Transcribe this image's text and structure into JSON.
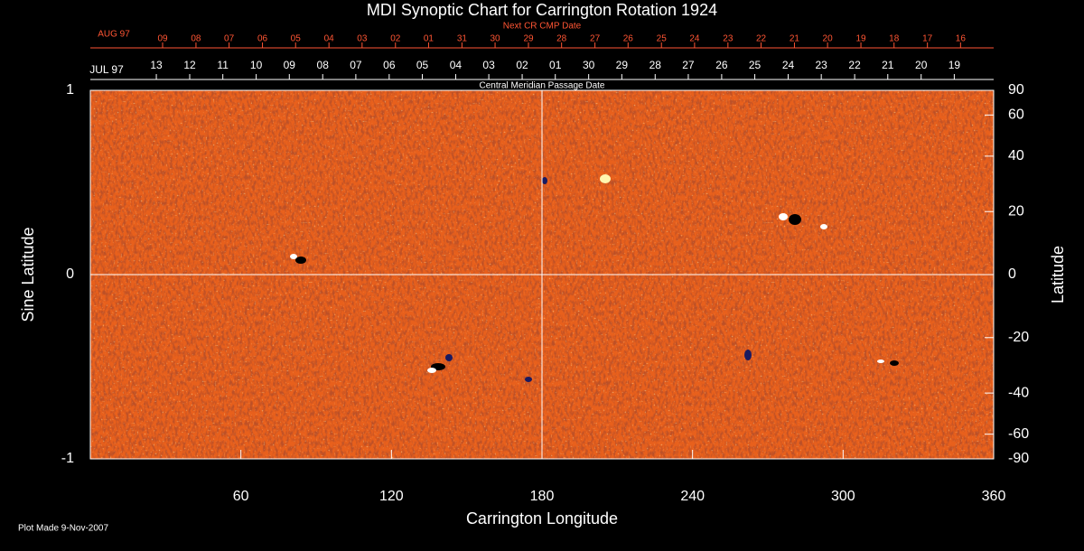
{
  "chart_data": {
    "type": "heatmap",
    "title": "MDI Synoptic Chart for Carrington Rotation 1924",
    "xlabel": "Carrington Longitude",
    "ylabel": "Sine Latitude",
    "y2label": "Latitude",
    "xlim": [
      0,
      360
    ],
    "xticks": [
      60,
      120,
      180,
      240,
      300,
      360
    ],
    "ylim": [
      -1,
      1
    ],
    "yticks": [
      -1,
      0,
      1
    ],
    "y2lim": [
      -90,
      90
    ],
    "y2scale": "sine",
    "y2ticks": [
      90,
      60,
      40,
      20,
      0,
      -20,
      -40,
      -60,
      -90
    ],
    "reference_lines": {
      "x": [
        180
      ],
      "y": [
        0
      ]
    },
    "top_axes": [
      {
        "title": "Next CR CMP Date",
        "month": "AUG 97",
        "color": "#ff5533",
        "ticks": [
          {
            "value": 28.8,
            "label": "09"
          },
          {
            "value": 42.1,
            "label": "08"
          },
          {
            "value": 55.3,
            "label": "07"
          },
          {
            "value": 68.6,
            "label": "06"
          },
          {
            "value": 81.8,
            "label": "05"
          },
          {
            "value": 95.1,
            "label": "04"
          },
          {
            "value": 108.3,
            "label": "03"
          },
          {
            "value": 121.6,
            "label": "02"
          },
          {
            "value": 134.8,
            "label": "01"
          },
          {
            "value": 148.1,
            "label": "31"
          },
          {
            "value": 161.3,
            "label": "30"
          },
          {
            "value": 174.6,
            "label": "29"
          },
          {
            "value": 187.8,
            "label": "28"
          },
          {
            "value": 201.1,
            "label": "27"
          },
          {
            "value": 214.3,
            "label": "26"
          },
          {
            "value": 227.6,
            "label": "25"
          },
          {
            "value": 240.8,
            "label": "24"
          },
          {
            "value": 254.1,
            "label": "23"
          },
          {
            "value": 267.3,
            "label": "22"
          },
          {
            "value": 280.6,
            "label": "21"
          },
          {
            "value": 293.8,
            "label": "20"
          },
          {
            "value": 307.1,
            "label": "19"
          },
          {
            "value": 320.3,
            "label": "18"
          },
          {
            "value": 333.6,
            "label": "17"
          },
          {
            "value": 346.8,
            "label": "16"
          }
        ]
      },
      {
        "title": "Central Meridian Passage Date",
        "month": "JUL 97",
        "color": "#ffffff",
        "ticks": [
          {
            "value": 26.3,
            "label": "13"
          },
          {
            "value": 39.6,
            "label": "12"
          },
          {
            "value": 52.8,
            "label": "11"
          },
          {
            "value": 66.1,
            "label": "10"
          },
          {
            "value": 79.3,
            "label": "09"
          },
          {
            "value": 92.6,
            "label": "08"
          },
          {
            "value": 105.8,
            "label": "07"
          },
          {
            "value": 119.1,
            "label": "06"
          },
          {
            "value": 132.3,
            "label": "05"
          },
          {
            "value": 145.6,
            "label": "04"
          },
          {
            "value": 158.8,
            "label": "03"
          },
          {
            "value": 172.1,
            "label": "02"
          },
          {
            "value": 185.3,
            "label": "01"
          },
          {
            "value": 198.6,
            "label": "30"
          },
          {
            "value": 211.8,
            "label": "29"
          },
          {
            "value": 225.1,
            "label": "28"
          },
          {
            "value": 238.3,
            "label": "27"
          },
          {
            "value": 251.6,
            "label": "26"
          },
          {
            "value": 264.8,
            "label": "25"
          },
          {
            "value": 278.1,
            "label": "24"
          },
          {
            "value": 291.3,
            "label": "23"
          },
          {
            "value": 304.6,
            "label": "22"
          },
          {
            "value": 317.8,
            "label": "21"
          },
          {
            "value": 331.1,
            "label": "20"
          },
          {
            "value": 344.3,
            "label": "19"
          }
        ]
      }
    ],
    "footnote": "Plot Made  9-Nov-2007"
  }
}
